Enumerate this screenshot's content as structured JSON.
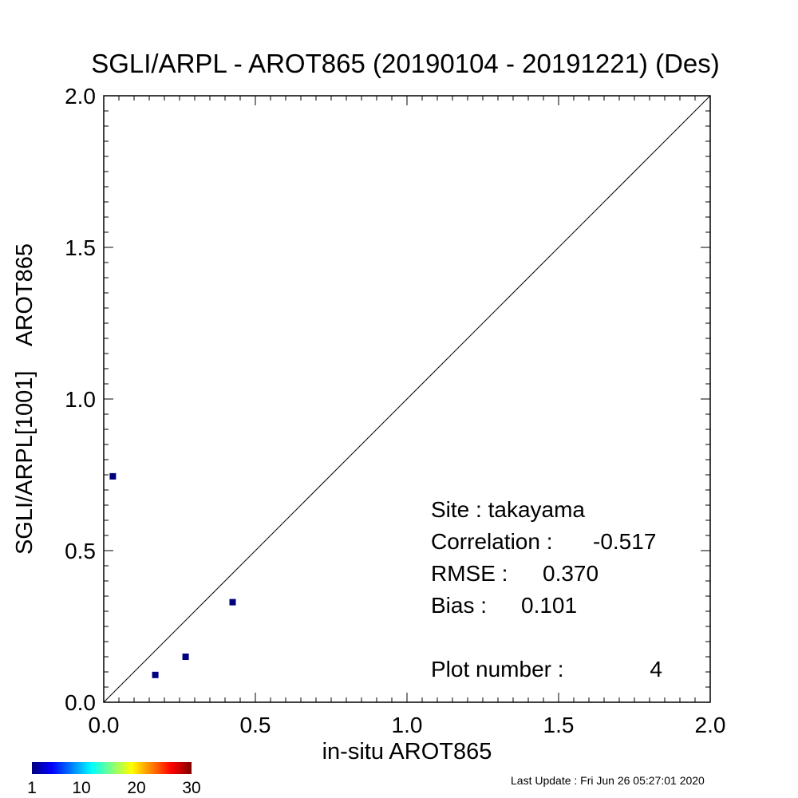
{
  "chart_data": {
    "type": "scatter",
    "title": "SGLI/ARPL - AROT865 (20190104 - 20191221) (Des)",
    "xlabel": "in-situ AROT865",
    "ylabel": "SGLI/ARPL[1001]    AROT865",
    "xlim": [
      0.0,
      2.0
    ],
    "ylim": [
      0.0,
      2.0
    ],
    "x_ticks": [
      "0.0",
      "0.5",
      "1.0",
      "1.5",
      "2.0"
    ],
    "y_ticks": [
      "0.0",
      "0.5",
      "1.0",
      "1.5",
      "2.0"
    ],
    "one_to_one_line": true,
    "grid": false,
    "points": [
      {
        "x": 0.03,
        "y": 0.745
      },
      {
        "x": 0.17,
        "y": 0.09
      },
      {
        "x": 0.27,
        "y": 0.15
      },
      {
        "x": 0.425,
        "y": 0.33
      }
    ],
    "point_color": "#00007f",
    "stats": {
      "site": "Site : takayama",
      "correlation_label": "Correlation :",
      "correlation_value": "-0.517",
      "rmse_label": "RMSE :",
      "rmse_value": "0.370",
      "bias_label": "Bias :",
      "bias_value": "0.101",
      "plot_number_label": "Plot number :",
      "plot_number_value": "4"
    },
    "colorbar": {
      "min": 1,
      "max": 30,
      "tick_labels": [
        "1",
        "10",
        "20",
        "30"
      ],
      "tick_values": [
        1,
        10,
        20,
        30
      ],
      "colormap": "jet"
    }
  },
  "footer": {
    "last_update": "Last Update : Fri Jun 26 05:27:01 2020"
  }
}
